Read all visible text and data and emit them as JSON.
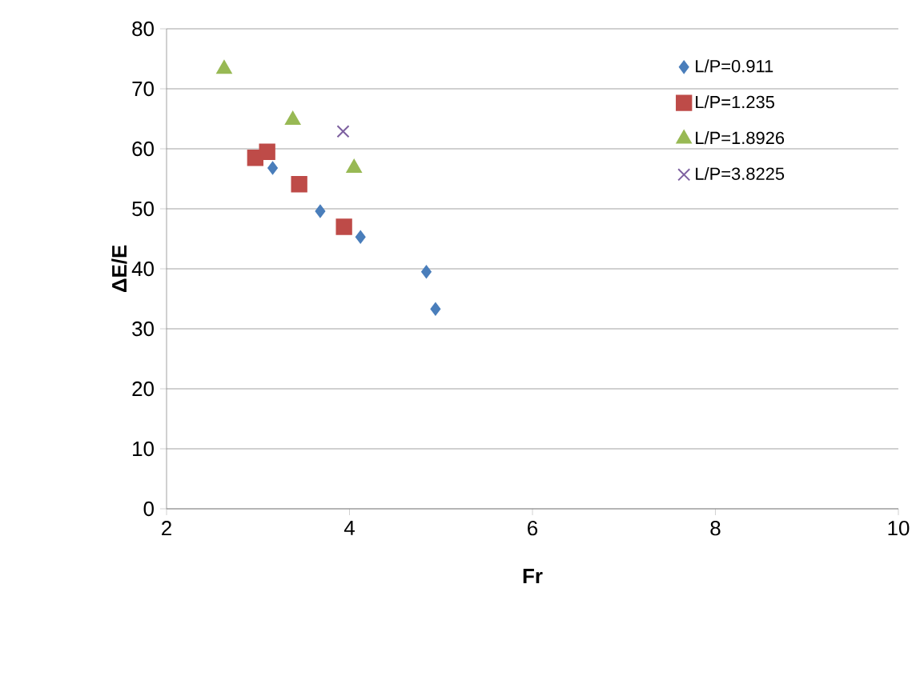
{
  "chart_data": {
    "type": "scatter",
    "xlabel": "Fr",
    "ylabel": "ΔE/E",
    "xlim": [
      2,
      10
    ],
    "xticks": [
      2,
      4,
      6,
      8,
      10
    ],
    "ylim": [
      0,
      80
    ],
    "yticks": [
      0,
      10,
      20,
      30,
      40,
      50,
      60,
      70,
      80
    ],
    "grid": "y",
    "legend": "top right",
    "series": [
      {
        "name": "L/P=0.911",
        "color": "#4a7ebb",
        "marker": "diamond",
        "x": [
          3.16,
          3.68,
          4.12,
          4.84,
          4.94
        ],
        "values": [
          56.8,
          49.6,
          45.3,
          39.5,
          33.3
        ]
      },
      {
        "name": "L/P=1.235",
        "color": "#be4b48",
        "marker": "square",
        "x": [
          2.97,
          3.1,
          3.45,
          3.94
        ],
        "values": [
          58.5,
          59.5,
          54.1,
          47
        ]
      },
      {
        "name": "L/P=1.8926",
        "color": "#98b954",
        "marker": "triangle",
        "x": [
          2.63,
          3.38,
          4.05
        ],
        "values": [
          73.3,
          64.8,
          56.8
        ]
      },
      {
        "name": "L/P=3.8225",
        "color": "#7d60a0",
        "marker": "cross",
        "x": [
          3.93
        ],
        "values": [
          62.9
        ]
      }
    ]
  }
}
